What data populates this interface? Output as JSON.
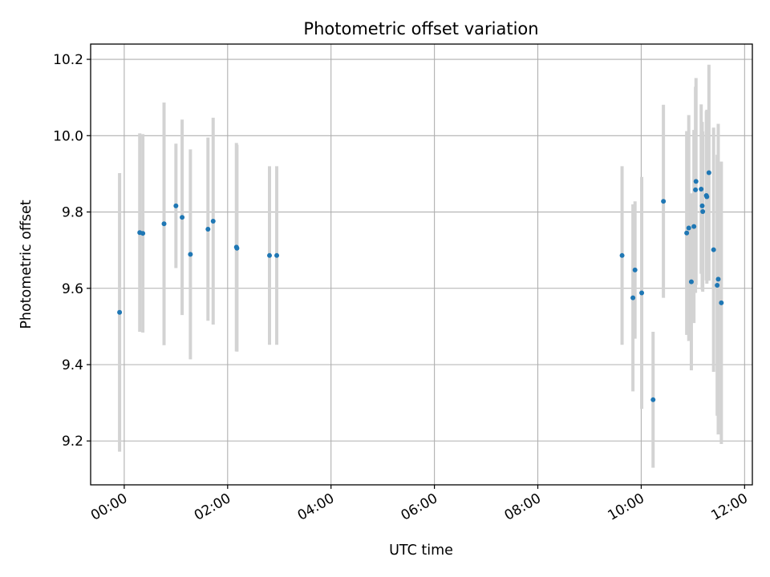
{
  "chart_data": {
    "type": "scatter",
    "title": "Photometric offset variation",
    "xlabel": "UTC time",
    "ylabel": "Photometric offset",
    "xlim": [
      -0.65,
      12.15
    ],
    "ylim": [
      9.085,
      10.24
    ],
    "grid": true,
    "x_ticks": [
      0,
      2,
      4,
      6,
      8,
      10,
      12
    ],
    "x_tick_labels": [
      "00:00",
      "02:00",
      "04:00",
      "06:00",
      "08:00",
      "10:00",
      "12:00"
    ],
    "y_ticks": [
      9.2,
      9.4,
      9.6,
      9.8,
      10.0,
      10.2
    ],
    "y_tick_labels": [
      "9.2",
      "9.4",
      "9.6",
      "9.8",
      "10.0",
      "10.2"
    ],
    "point_color": "#1f77b4",
    "errorbar_color": "#d3d3d3",
    "points": [
      {
        "x": -0.09,
        "y": 9.537,
        "err": 0.365
      },
      {
        "x": 0.3,
        "y": 9.746,
        "err": 0.26
      },
      {
        "x": 0.36,
        "y": 9.744,
        "err": 0.26
      },
      {
        "x": 0.77,
        "y": 9.769,
        "err": 0.318
      },
      {
        "x": 1.0,
        "y": 9.816,
        "err": 0.163
      },
      {
        "x": 1.12,
        "y": 9.786,
        "err": 0.256
      },
      {
        "x": 1.28,
        "y": 9.689,
        "err": 0.275
      },
      {
        "x": 1.62,
        "y": 9.755,
        "err": 0.24
      },
      {
        "x": 1.72,
        "y": 9.776,
        "err": 0.271
      },
      {
        "x": 2.17,
        "y": 9.708,
        "err": 0.273
      },
      {
        "x": 2.18,
        "y": 9.705,
        "err": 0.271
      },
      {
        "x": 2.81,
        "y": 9.686,
        "err": 0.234
      },
      {
        "x": 2.95,
        "y": 9.686,
        "err": 0.234
      },
      {
        "x": 9.63,
        "y": 9.686,
        "err": 0.234
      },
      {
        "x": 9.84,
        "y": 9.575,
        "err": 0.245
      },
      {
        "x": 9.88,
        "y": 9.648,
        "err": 0.18
      },
      {
        "x": 10.01,
        "y": 9.588,
        "err": 0.304
      },
      {
        "x": 10.23,
        "y": 9.308,
        "err": 0.178
      },
      {
        "x": 10.43,
        "y": 9.828,
        "err": 0.253
      },
      {
        "x": 10.88,
        "y": 9.745,
        "err": 0.267
      },
      {
        "x": 10.92,
        "y": 9.758,
        "err": 0.296
      },
      {
        "x": 10.97,
        "y": 9.617,
        "err": 0.232
      },
      {
        "x": 11.02,
        "y": 9.762,
        "err": 0.253
      },
      {
        "x": 11.05,
        "y": 9.858,
        "err": 0.27
      },
      {
        "x": 11.06,
        "y": 9.88,
        "err": 0.271
      },
      {
        "x": 11.16,
        "y": 9.86,
        "err": 0.222
      },
      {
        "x": 11.18,
        "y": 9.816,
        "err": 0.22
      },
      {
        "x": 11.19,
        "y": 9.801,
        "err": 0.21
      },
      {
        "x": 11.26,
        "y": 9.843,
        "err": 0.222
      },
      {
        "x": 11.27,
        "y": 9.84,
        "err": 0.228
      },
      {
        "x": 11.31,
        "y": 9.903,
        "err": 0.283
      },
      {
        "x": 11.4,
        "y": 9.701,
        "err": 0.32
      },
      {
        "x": 11.47,
        "y": 9.608,
        "err": 0.342
      },
      {
        "x": 11.49,
        "y": 9.624,
        "err": 0.407
      },
      {
        "x": 11.55,
        "y": 9.562,
        "err": 0.37
      }
    ]
  }
}
